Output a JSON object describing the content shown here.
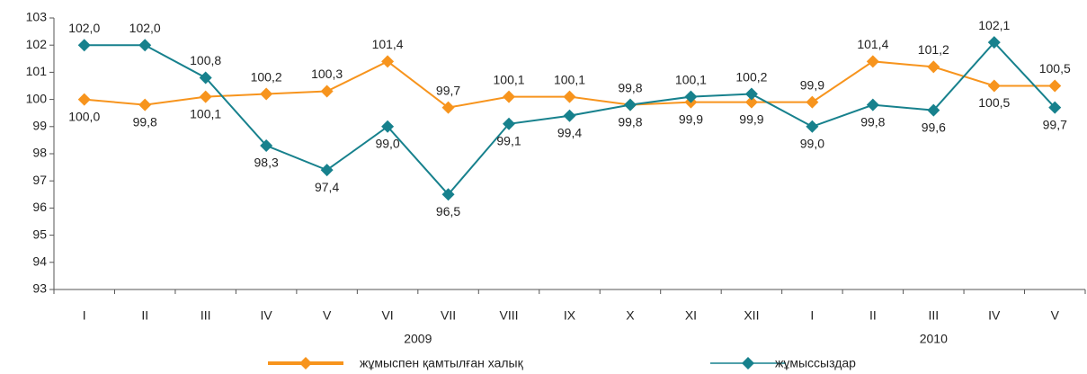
{
  "chart_data": {
    "type": "line",
    "categories": [
      "I",
      "II",
      "III",
      "IV",
      "V",
      "VI",
      "VII",
      "VIII",
      "IX",
      "X",
      "XI",
      "XII",
      "I",
      "II",
      "III",
      "IV",
      "V"
    ],
    "groups": [
      {
        "label": "2009",
        "count": 12
      },
      {
        "label": "2010",
        "count": 5
      }
    ],
    "series": [
      {
        "name": "жұмыспен қамтылған халық",
        "color": "#f7941d",
        "values": [
          100.0,
          99.8,
          100.1,
          100.2,
          100.3,
          101.4,
          99.7,
          100.1,
          100.1,
          99.8,
          99.9,
          99.9,
          99.9,
          101.4,
          101.2,
          100.5,
          100.5
        ],
        "value_labels": [
          "100,0",
          "99,8",
          "100,1",
          "100,2",
          "100,3",
          "101,4",
          "99,7",
          "100,1",
          "100,1",
          "99,8",
          "99,9",
          "99,9",
          "99,9",
          "101,4",
          "101,2",
          "100,5",
          "100,5"
        ]
      },
      {
        "name": "жұмыссыздар",
        "color": "#17818d",
        "values": [
          102.0,
          102.0,
          100.8,
          98.3,
          97.4,
          99.0,
          96.5,
          99.1,
          99.4,
          99.8,
          100.1,
          100.2,
          99.0,
          99.8,
          99.6,
          102.1,
          99.7
        ],
        "value_labels": [
          "102,0",
          "102,0",
          "100,8",
          "98,3",
          "97,4",
          "99,0",
          "96,5",
          "99,1",
          "99,4",
          "99,8",
          "100,1",
          "100,2",
          "99,0",
          "99,8",
          "99,6",
          "102,1",
          "99,7"
        ]
      }
    ],
    "ylim": [
      93,
      103
    ],
    "yticks": [
      93,
      94,
      95,
      96,
      97,
      98,
      99,
      100,
      101,
      102,
      103
    ],
    "legend": "bottom"
  }
}
